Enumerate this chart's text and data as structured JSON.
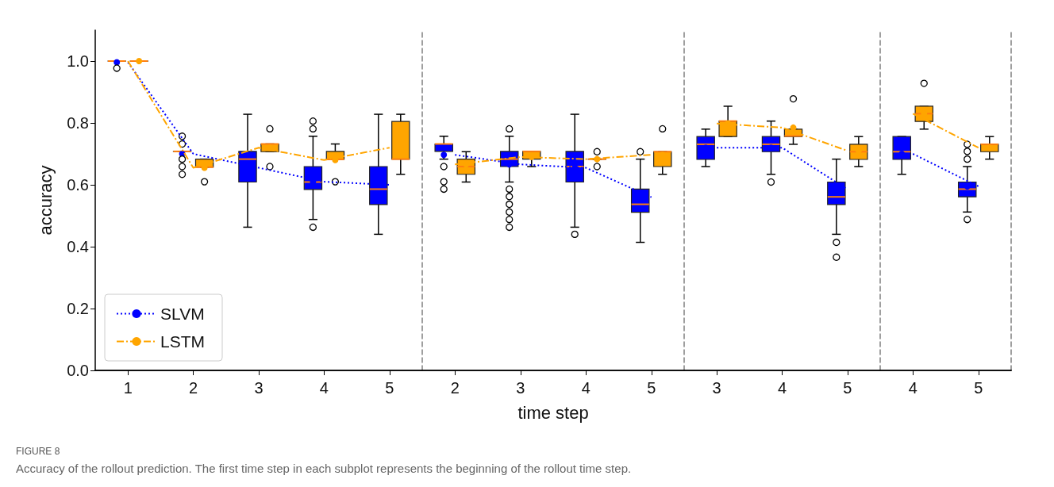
{
  "chart_data": [
    {
      "type": "box",
      "ylabel": "accuracy",
      "legend": "bottom left",
      "annotations": [
        "FIGURE 8",
        "Accuracy of the rollout prediction. The first time step in each subplot represents the beginning of the rollout time step."
      ],
      "categories": [
        "1",
        "2",
        "3",
        "4",
        "5"
      ],
      "ylim": [
        0,
        1.1
      ],
      "yticks": [
        {
          "value": 0,
          "label": "0.0"
        },
        {
          "value": 0.2,
          "label": "0.2"
        },
        {
          "value": 0.4,
          "label": "0.4"
        },
        {
          "value": 0.6,
          "label": "0.6"
        },
        {
          "value": 0.8,
          "label": "0.8"
        },
        {
          "value": 1,
          "label": "1.0"
        }
      ],
      "series": [
        {
          "type": "box",
          "color": "#0000ff",
          "boxes": [
            {
              "low": 1.0,
              "q1": 1.0,
              "median": 1.0,
              "q3": 1.0,
              "high": 1.0,
              "mean": 0.996,
              "outliers": [
                0.977
              ]
            },
            {
              "low": 0.708,
              "q1": 0.708,
              "median": 0.708,
              "q3": 0.708,
              "high": 0.708,
              "mean": 0.7,
              "outliers": [
                0.757,
                0.732,
                0.683,
                0.659,
                0.634
              ]
            },
            {
              "low": 0.463,
              "q1": 0.609,
              "median": 0.683,
              "q3": 0.708,
              "high": 0.828,
              "mean": 0.655
            },
            {
              "low": 0.488,
              "q1": 0.585,
              "median": 0.609,
              "q3": 0.659,
              "high": 0.757,
              "mean": 0.61,
              "outliers": [
                0.806,
                0.781,
                0.463
              ]
            },
            {
              "low": 0.44,
              "q1": 0.536,
              "median": 0.586,
              "q3": 0.659,
              "high": 0.828,
              "mean": 0.6
            }
          ]
        },
        {
          "type": "box",
          "color": "#ffa500",
          "boxes": [
            {
              "low": 1.0,
              "q1": 1.0,
              "median": 1.0,
              "q3": 1.0,
              "high": 1.0,
              "mean": 1.0
            },
            {
              "low": 0.657,
              "q1": 0.657,
              "median": 0.657,
              "q3": 0.683,
              "high": 0.683,
              "mean": 0.655,
              "outliers": [
                0.61
              ]
            },
            {
              "low": 0.707,
              "q1": 0.707,
              "median": 0.732,
              "q3": 0.732,
              "high": 0.732,
              "mean": 0.72,
              "outliers": [
                0.781,
                0.659
              ]
            },
            {
              "low": 0.682,
              "q1": 0.682,
              "median": 0.682,
              "q3": 0.708,
              "high": 0.732,
              "mean": 0.68,
              "outliers": [
                0.61
              ]
            },
            {
              "low": 0.634,
              "q1": 0.683,
              "median": 0.683,
              "q3": 0.805,
              "high": 0.828,
              "mean": 0.72
            }
          ]
        },
        {
          "type": "line",
          "name": "SLVM",
          "color": "#0000ff",
          "line_style": "dotted",
          "values": [
            0.996,
            0.7,
            0.655,
            0.61,
            0.6
          ]
        },
        {
          "type": "line",
          "name": "LSTM",
          "color": "#ffa500",
          "line_style": "dashdot",
          "values": [
            1.0,
            0.655,
            0.72,
            0.68,
            0.72
          ]
        }
      ]
    },
    {
      "type": "box",
      "xlabel": "time step",
      "tick_labels": "x",
      "categories": [
        "2",
        "3",
        "4",
        "5"
      ],
      "ylim": [
        0,
        1.1
      ],
      "series": [
        {
          "type": "box",
          "color": "#0000ff",
          "boxes": [
            {
              "low": 0.683,
              "q1": 0.708,
              "median": 0.732,
              "q3": 0.732,
              "high": 0.757,
              "mean": 0.697,
              "outliers": [
                0.659,
                0.61,
                0.586
              ]
            },
            {
              "low": 0.609,
              "q1": 0.659,
              "median": 0.683,
              "q3": 0.708,
              "high": 0.757,
              "mean": 0.666,
              "outliers": [
                0.781,
                0.586,
                0.562,
                0.537,
                0.512,
                0.488,
                0.463
              ]
            },
            {
              "low": 0.463,
              "q1": 0.609,
              "median": 0.659,
              "q3": 0.708,
              "high": 0.828,
              "mean": 0.655,
              "outliers": [
                0.44
              ]
            },
            {
              "low": 0.414,
              "q1": 0.511,
              "median": 0.537,
              "q3": 0.586,
              "high": 0.683,
              "mean": 0.56,
              "outliers": [
                0.707
              ]
            }
          ]
        },
        {
          "type": "box",
          "color": "#ffa500",
          "boxes": [
            {
              "low": 0.609,
              "q1": 0.634,
              "median": 0.659,
              "q3": 0.683,
              "high": 0.707,
              "mean": 0.666
            },
            {
              "low": 0.659,
              "q1": 0.683,
              "median": 0.708,
              "q3": 0.708,
              "high": 0.708,
              "mean": 0.69
            },
            {
              "low": 0.683,
              "q1": 0.683,
              "median": 0.683,
              "q3": 0.683,
              "high": 0.683,
              "mean": 0.683,
              "outliers": [
                0.707,
                0.659
              ]
            },
            {
              "low": 0.634,
              "q1": 0.659,
              "median": 0.707,
              "q3": 0.707,
              "high": 0.707,
              "mean": 0.697,
              "outliers": [
                0.781
              ]
            }
          ]
        },
        {
          "type": "line",
          "color": "#0000ff",
          "line_style": "dotted",
          "values": [
            0.697,
            0.666,
            0.655,
            0.56
          ]
        },
        {
          "type": "line",
          "color": "#ffa500",
          "line_style": "dashdot",
          "values": [
            0.666,
            0.69,
            0.683,
            0.697
          ]
        }
      ]
    },
    {
      "type": "box",
      "tick_labels": "x",
      "categories": [
        "3",
        "4",
        "5"
      ],
      "ylim": [
        0,
        1.1
      ],
      "series": [
        {
          "type": "box",
          "color": "#0000ff",
          "boxes": [
            {
              "low": 0.659,
              "q1": 0.682,
              "median": 0.731,
              "q3": 0.756,
              "high": 0.78,
              "mean": 0.72
            },
            {
              "low": 0.634,
              "q1": 0.707,
              "median": 0.731,
              "q3": 0.756,
              "high": 0.806,
              "mean": 0.72,
              "outliers": [
                0.609
              ]
            },
            {
              "low": 0.44,
              "q1": 0.536,
              "median": 0.561,
              "q3": 0.609,
              "high": 0.683,
              "mean": 0.585,
              "outliers": [
                0.414,
                0.366
              ]
            }
          ]
        },
        {
          "type": "box",
          "color": "#ffa500",
          "boxes": [
            {
              "low": 0.756,
              "q1": 0.756,
              "median": 0.806,
              "q3": 0.806,
              "high": 0.854,
              "mean": 0.798
            },
            {
              "low": 0.731,
              "q1": 0.756,
              "median": 0.758,
              "q3": 0.78,
              "high": 0.78,
              "mean": 0.785,
              "outliers": [
                0.878
              ]
            },
            {
              "low": 0.659,
              "q1": 0.682,
              "median": 0.707,
              "q3": 0.731,
              "high": 0.756,
              "mean": 0.71
            }
          ]
        },
        {
          "type": "line",
          "color": "#0000ff",
          "line_style": "dotted",
          "values": [
            0.72,
            0.72,
            0.585
          ]
        },
        {
          "type": "line",
          "color": "#ffa500",
          "line_style": "dashdot",
          "values": [
            0.798,
            0.785,
            0.71
          ]
        }
      ]
    },
    {
      "type": "box",
      "tick_labels": "x",
      "categories": [
        "4",
        "5"
      ],
      "ylim": [
        0,
        1.1
      ],
      "series": [
        {
          "type": "box",
          "color": "#0000ff",
          "boxes": [
            {
              "low": 0.634,
              "q1": 0.682,
              "median": 0.707,
              "q3": 0.756,
              "high": 0.756,
              "mean": 0.7
            },
            {
              "low": 0.512,
              "q1": 0.561,
              "median": 0.586,
              "q3": 0.609,
              "high": 0.659,
              "mean": 0.595,
              "outliers": [
                0.731,
                0.708,
                0.683,
                0.488
              ]
            }
          ]
        },
        {
          "type": "box",
          "color": "#ffa500",
          "boxes": [
            {
              "low": 0.78,
              "q1": 0.805,
              "median": 0.83,
              "q3": 0.854,
              "high": 0.854,
              "mean": 0.83,
              "outliers": [
                0.928
              ]
            },
            {
              "low": 0.683,
              "q1": 0.707,
              "median": 0.731,
              "q3": 0.731,
              "high": 0.756,
              "mean": 0.72
            }
          ]
        },
        {
          "type": "line",
          "color": "#0000ff",
          "line_style": "dotted",
          "values": [
            0.7,
            0.595
          ]
        },
        {
          "type": "line",
          "color": "#ffa500",
          "line_style": "dashdot",
          "values": [
            0.83,
            0.72
          ]
        }
      ]
    }
  ]
}
